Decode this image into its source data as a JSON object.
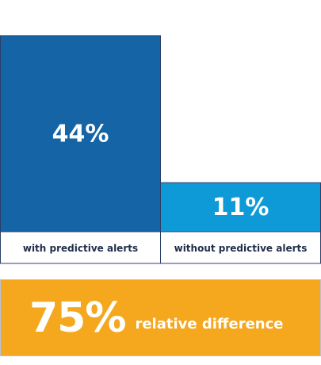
{
  "chart_data": {
    "type": "bar",
    "categories": [
      "with predictive alerts",
      "without predictive alerts"
    ],
    "values": [
      44,
      11
    ],
    "value_labels": [
      "44%",
      "11%"
    ],
    "unit": "%",
    "ylim": [
      0,
      52
    ],
    "grid": false,
    "colors": [
      "#1565a6",
      "#0e9ad6"
    ],
    "border_color": "#2b3f6b"
  },
  "summary": {
    "value": "75%",
    "label": "relative difference",
    "bg_color": "#f5a71e"
  }
}
